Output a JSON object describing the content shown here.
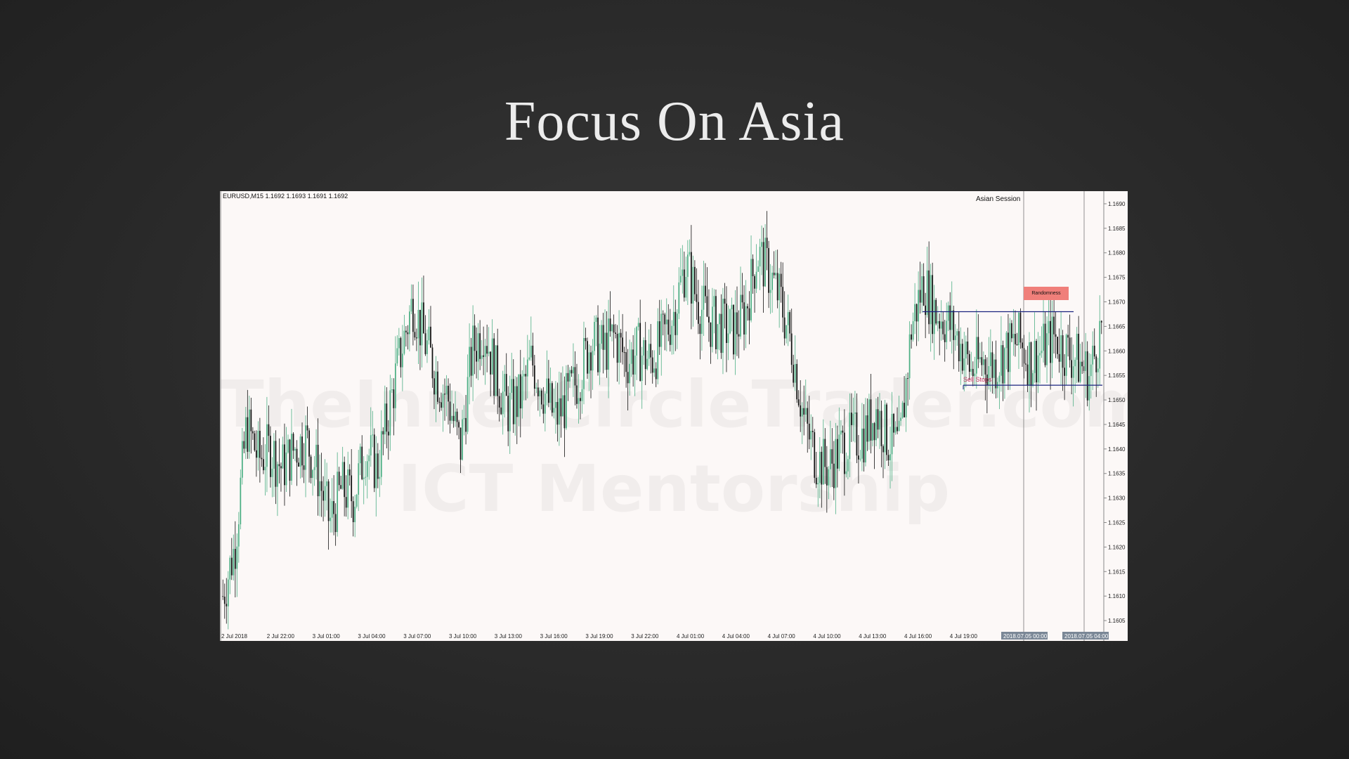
{
  "slide": {
    "title": "Focus On Asia"
  },
  "chart_data": {
    "type": "candlestick",
    "symbol_info": "EURUSD,M15  1.1692 1.1693 1.1691 1.1692",
    "watermark": [
      "TheInnerCircleTrader.com",
      "ICT Mentorship"
    ],
    "annotations": {
      "session_label": "Asian Session",
      "randomness_label": "Randomness",
      "sell_stops_label": "Sell Stops",
      "upper_level": 1.1668,
      "lower_level": 1.1653
    },
    "y_ticks": [
      "1.1690",
      "1.1685",
      "1.1680",
      "1.1675",
      "1.1670",
      "1.1665",
      "1.1660",
      "1.1655",
      "1.1650",
      "1.1645",
      "1.1640",
      "1.1635",
      "1.1630",
      "1.1625",
      "1.1620",
      "1.1615",
      "1.1610",
      "1.1605"
    ],
    "ylim": [
      1.1602,
      1.1692
    ],
    "x_ticks": [
      "2 Jul 2018",
      "2 Jul 22:00",
      "3 Jul 01:00",
      "3 Jul 04:00",
      "3 Jul 07:00",
      "3 Jul 10:00",
      "3 Jul 13:00",
      "3 Jul 16:00",
      "3 Jul 19:00",
      "3 Jul 22:00",
      "4 Jul 01:00",
      "4 Jul 04:00",
      "4 Jul 07:00",
      "4 Jul 10:00",
      "4 Jul 13:00",
      "4 Jul 16:00",
      "4 Jul 19:00"
    ],
    "time_labels": [
      "2018.07.05 00:00",
      "2018.07.05 04:00"
    ],
    "colors": {
      "bull": "#4caf84",
      "bear": "#111111",
      "level": "#1a237e",
      "background": "#fcf8f7"
    },
    "price_path": [
      1.161,
      1.162,
      1.1645,
      1.1638,
      1.164,
      1.1636,
      1.164,
      1.1642,
      1.1635,
      1.1625,
      1.1632,
      1.163,
      1.164,
      1.1636,
      1.1648,
      1.166,
      1.167,
      1.1662,
      1.1655,
      1.165,
      1.164,
      1.166,
      1.1665,
      1.1655,
      1.1648,
      1.165,
      1.1658,
      1.1652,
      1.1646,
      1.165,
      1.1655,
      1.1662,
      1.166,
      1.1663,
      1.1658,
      1.166,
      1.1658,
      1.1662,
      1.1668,
      1.1678,
      1.167,
      1.1666,
      1.1665,
      1.1664,
      1.1668,
      1.168,
      1.1676,
      1.167,
      1.166,
      1.1645,
      1.1638,
      1.1636,
      1.164,
      1.1642,
      1.1643,
      1.1648,
      1.1642,
      1.164,
      1.1665,
      1.1674,
      1.1668,
      1.1666,
      1.1662,
      1.1656,
      1.1658,
      1.1657,
      1.166,
      1.1662,
      1.1658,
      1.166,
      1.1663,
      1.166,
      1.1658,
      1.1655,
      1.1665
    ]
  }
}
